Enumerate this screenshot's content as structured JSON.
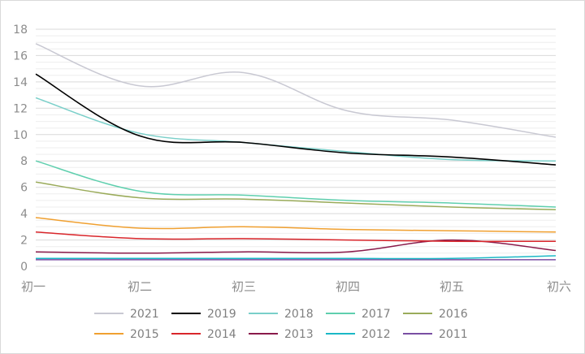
{
  "chart_data": {
    "type": "line",
    "title": "",
    "xlabel": "",
    "ylabel": "",
    "categories": [
      "初一",
      "初二",
      "初三",
      "初四",
      "初五",
      "初六"
    ],
    "y_ticks": [
      "0",
      "2",
      "4",
      "6",
      "8",
      "10",
      "12",
      "14",
      "16",
      "18"
    ],
    "ylim": [
      0,
      18
    ],
    "grid": "horizontal",
    "legend_position": "bottom",
    "series": [
      {
        "name": "2021",
        "color": "#c8c8d2",
        "values": [
          16.9,
          13.7,
          14.7,
          11.8,
          11.1,
          9.8
        ]
      },
      {
        "name": "2019",
        "color": "#000000",
        "values": [
          14.6,
          9.9,
          9.4,
          8.6,
          8.3,
          7.7
        ]
      },
      {
        "name": "2018",
        "color": "#79cfc9",
        "values": [
          12.8,
          10.1,
          9.4,
          8.7,
          8.1,
          8.0
        ]
      },
      {
        "name": "2017",
        "color": "#5fcfae",
        "values": [
          8.0,
          5.7,
          5.4,
          5.0,
          4.8,
          4.5
        ]
      },
      {
        "name": "2016",
        "color": "#9aab5a",
        "values": [
          6.4,
          5.2,
          5.1,
          4.8,
          4.5,
          4.3
        ]
      },
      {
        "name": "2015",
        "color": "#f0a030",
        "values": [
          3.7,
          2.9,
          3.0,
          2.8,
          2.7,
          2.6
        ]
      },
      {
        "name": "2014",
        "color": "#d9262b",
        "values": [
          2.6,
          2.1,
          2.1,
          2.0,
          1.9,
          1.9
        ]
      },
      {
        "name": "2013",
        "color": "#8a1a4a",
        "values": [
          1.1,
          1.0,
          1.1,
          1.1,
          2.0,
          1.2
        ]
      },
      {
        "name": "2012",
        "color": "#1bb8c6",
        "values": [
          0.6,
          0.6,
          0.6,
          0.6,
          0.6,
          0.8
        ]
      },
      {
        "name": "2011",
        "color": "#7a4fa3",
        "values": [
          0.5,
          0.5,
          0.5,
          0.5,
          0.5,
          0.5
        ]
      }
    ]
  }
}
